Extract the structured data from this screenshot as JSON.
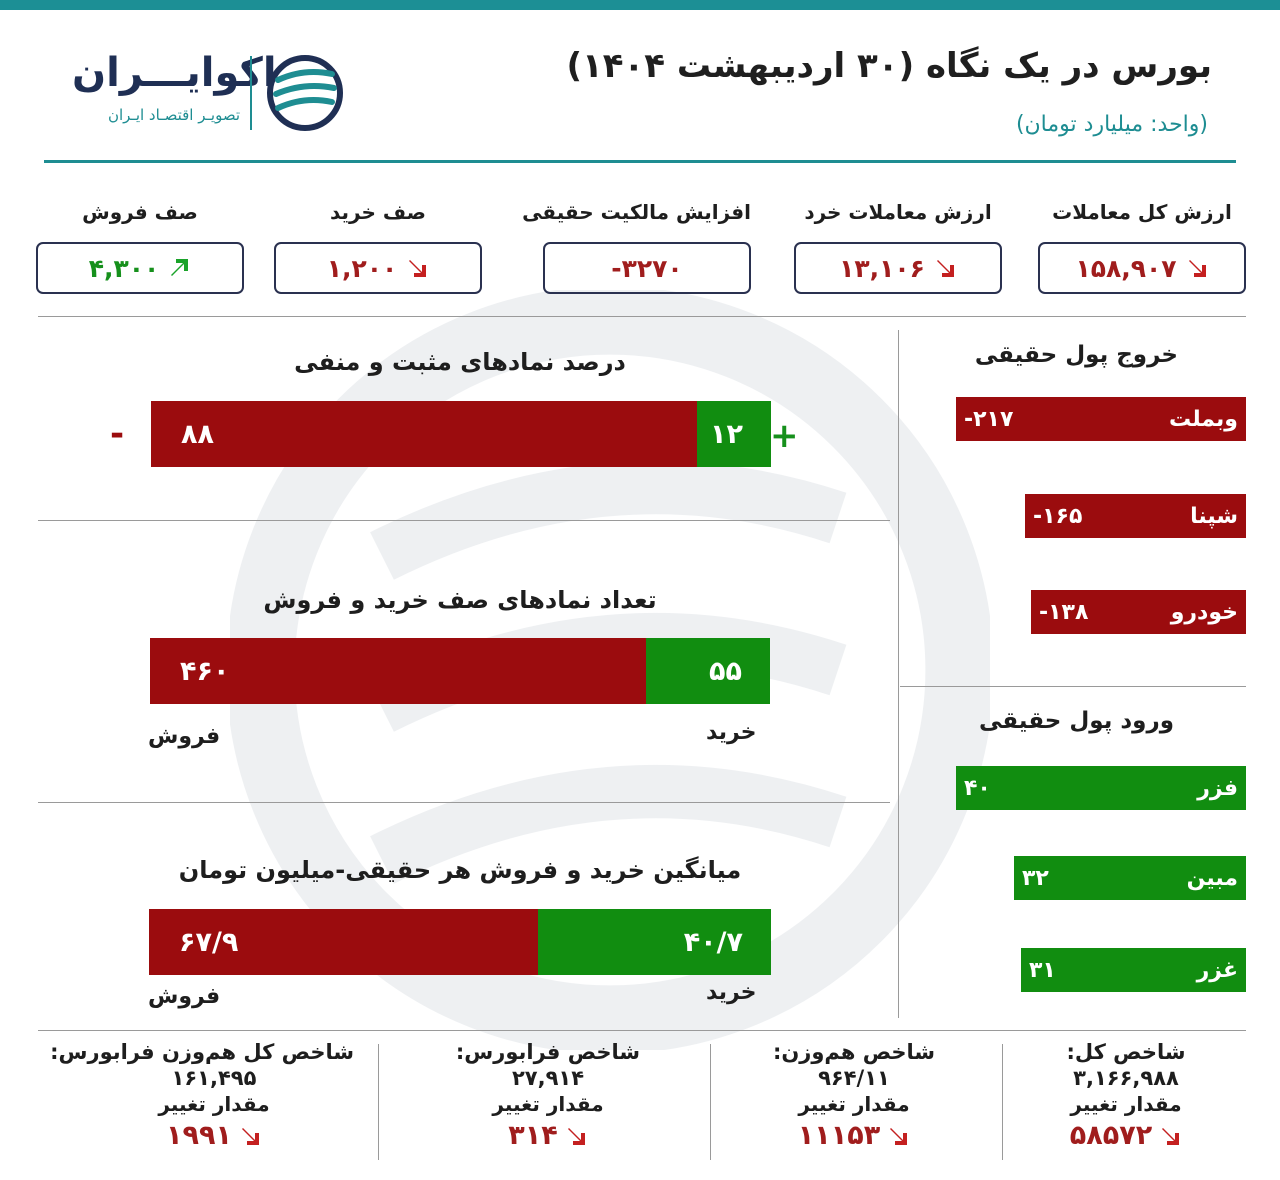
{
  "header": {
    "title": "بورس در یک نگاه (۳۰ اردیبهشت ۱۴۰۴)",
    "unit": "(واحد: میلیارد تومان)",
    "logo_name": "اکوایـــران",
    "logo_tagline": "تصویـر اقتصـاد ایـران"
  },
  "kpis": [
    {
      "label": "ارزش کل معاملات",
      "value": "۱۵۸,۹۰۷",
      "trend": "down"
    },
    {
      "label": "ارزش معاملات خرد",
      "value": "۱۳,۱۰۶",
      "trend": "down"
    },
    {
      "label": "افزایش مالکیت حقیقی",
      "value": "-۳۲۷۰",
      "trend": "none"
    },
    {
      "label": "صف خرید",
      "value": "۱,۲۰۰",
      "trend": "down"
    },
    {
      "label": "صف فروش",
      "value": "۴,۳۰۰",
      "trend": "up"
    }
  ],
  "sections": {
    "positive_negative": {
      "title": "درصد نمادهای مثبت و منفی",
      "negative": "۸۸",
      "positive": "۱۲",
      "negative_share": 88,
      "positive_share": 12,
      "minus_sign": "-",
      "plus_sign": "+"
    },
    "queues": {
      "title": "تعداد نمادهای صف خرید و فروش",
      "sell": "۴۶۰",
      "buy": "۵۵",
      "sell_count": 460,
      "buy_count": 55,
      "sell_label": "فروش",
      "buy_label": "خرید"
    },
    "avg_trade": {
      "title": "میانگین خرید و فروش هر حقیقی-میلیون تومان",
      "sell": "۶۷/۹",
      "buy": "۴۰/۷",
      "sell_amount": 67.9,
      "buy_amount": 40.7,
      "sell_label": "فروش",
      "buy_label": "خرید"
    }
  },
  "outflow": {
    "title": "خروج پول حقیقی",
    "items": [
      {
        "name": "وبملت",
        "value": "-۲۱۷",
        "amount": -217
      },
      {
        "name": "شپنا",
        "value": "-۱۶۵",
        "amount": -165
      },
      {
        "name": "خودرو",
        "value": "-۱۳۸",
        "amount": -138
      }
    ]
  },
  "inflow": {
    "title": "ورود پول حقیقی",
    "items": [
      {
        "name": "فزر",
        "value": "۴۰",
        "amount": 40
      },
      {
        "name": "مبین",
        "value": "۳۲",
        "amount": 32
      },
      {
        "name": "غزر",
        "value": "۳۱",
        "amount": 31
      }
    ]
  },
  "indices": [
    {
      "name": "شاخص کل:",
      "value": "۳,۱۶۶,۹۸۸",
      "change_label": "مقدار تغییر",
      "change": "۵۸۵۷۲"
    },
    {
      "name": "شاخص هم‌وزن:",
      "value": "۹۶۴/۱۱",
      "change_label": "مقدار تغییر",
      "change": "۱۱۱۵۳"
    },
    {
      "name": "شاخص فرابورس:",
      "value": "۲۷,۹۱۴",
      "change_label": "مقدار تغییر",
      "change": "۳۱۴"
    },
    {
      "name": "شاخص کل هم‌وزن فرابورس:",
      "value": "۱۶۱,۴۹۵",
      "change_label": "مقدار تغییر",
      "change": "۱۹۹۱"
    }
  ],
  "colors": {
    "accent": "#1e8d92",
    "red": "#9b0c0e",
    "green": "#118d10",
    "arrow_red": "#c42020",
    "arrow_green": "#1aa32a"
  }
}
